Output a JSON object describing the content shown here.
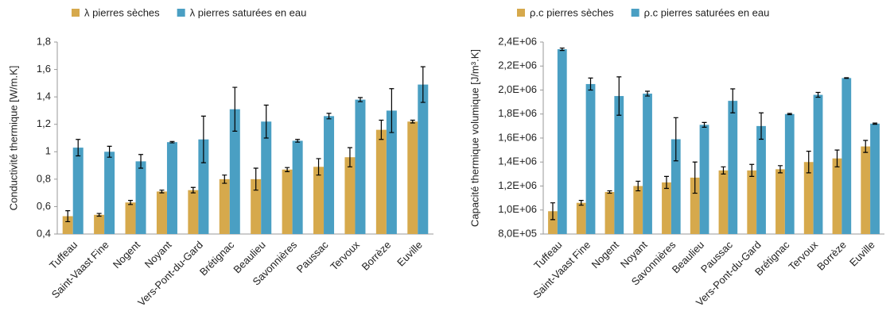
{
  "chart_data": [
    {
      "type": "bar",
      "ylabel": "Conductivité thermique [W/m.K]",
      "categories": [
        "Tuffeau",
        "Saint-Vaast Fine",
        "Nogent",
        "Noyant",
        "Vers-Pont-du-Gard",
        "Brétignac",
        "Beaulieu",
        "Savonnières",
        "Paussac",
        "Tervoux",
        "Borrèze",
        "Euville"
      ],
      "series": [
        {
          "name": "λ pierres sèches",
          "color": "#d6a94c",
          "values": [
            0.53,
            0.54,
            0.63,
            0.71,
            0.72,
            0.8,
            0.8,
            0.87,
            0.89,
            0.96,
            1.16,
            1.22
          ],
          "errors": [
            0.04,
            0.01,
            0.015,
            0.01,
            0.02,
            0.03,
            0.08,
            0.015,
            0.06,
            0.07,
            0.07,
            0.01
          ]
        },
        {
          "name": "λ pierres saturées en eau",
          "color": "#4a9fc3",
          "values": [
            1.03,
            1.0,
            0.93,
            1.07,
            1.09,
            1.31,
            1.22,
            1.08,
            1.26,
            1.38,
            1.3,
            1.49
          ],
          "errors": [
            0.06,
            0.04,
            0.05,
            0.005,
            0.17,
            0.16,
            0.12,
            0.01,
            0.02,
            0.015,
            0.16,
            0.13
          ]
        }
      ],
      "ylim": [
        0.4,
        1.8
      ],
      "yticks": [
        {
          "value": 0.4,
          "label": "0,4"
        },
        {
          "value": 0.6,
          "label": "0,6"
        },
        {
          "value": 0.8,
          "label": "0,8"
        },
        1,
        {
          "value": 1.2,
          "label": "1,2"
        },
        {
          "value": 1.4,
          "label": "1,4"
        },
        {
          "value": 1.6,
          "label": "1,6"
        },
        {
          "value": 1.8,
          "label": "1,8"
        }
      ],
      "grid": false,
      "legend": "top"
    },
    {
      "type": "bar",
      "ylabel": "Capacité thermique volumique [J/m³.K]",
      "categories": [
        "Tuffeau",
        "Saint-Vaast Fine",
        "Nogent",
        "Noyant",
        "Savonnières",
        "Beaulieu",
        "Paussac",
        "Vers-Pont-du-Gard",
        "Brétignac",
        "Tervoux",
        "Borrèze",
        "Euville"
      ],
      "series": [
        {
          "name": "ρ.c pierres sèches",
          "color": "#d6a94c",
          "values": [
            990000,
            1060000,
            1150000,
            1200000,
            1230000,
            1270000,
            1330000,
            1330000,
            1340000,
            1400000,
            1430000,
            1530000
          ],
          "errors": [
            70000,
            20000,
            10000,
            40000,
            50000,
            130000,
            30000,
            50000,
            30000,
            90000,
            70000,
            50000
          ]
        },
        {
          "name": "ρ.c pierres saturées en eau",
          "color": "#4a9fc3",
          "values": [
            2340000,
            2050000,
            1950000,
            1970000,
            1590000,
            1710000,
            1910000,
            1700000,
            1800000,
            1960000,
            2100000,
            1720000
          ],
          "errors": [
            10000,
            50000,
            160000,
            20000,
            180000,
            20000,
            100000,
            110000,
            5000,
            20000,
            3000,
            5000
          ]
        }
      ],
      "ylim": [
        800000,
        2400000
      ],
      "yticks": [
        {
          "value": 800000,
          "label": "8,0E+05"
        },
        {
          "value": 1000000,
          "label": "1,0E+06"
        },
        {
          "value": 1200000,
          "label": "1,2E+06"
        },
        {
          "value": 1400000,
          "label": "1,4E+06"
        },
        {
          "value": 1600000,
          "label": "1,6E+06"
        },
        {
          "value": 1800000,
          "label": "1,8E+06"
        },
        {
          "value": 2000000,
          "label": "2,0E+06"
        },
        {
          "value": 2200000,
          "label": "2,2E+06"
        },
        {
          "value": 2400000,
          "label": "2,4E+06"
        }
      ],
      "grid": false,
      "legend": "top"
    }
  ]
}
